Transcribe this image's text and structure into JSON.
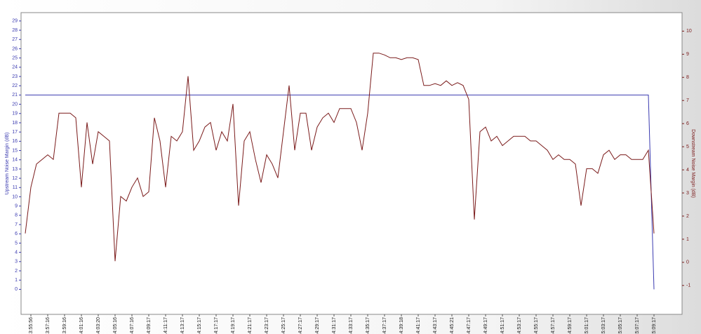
{
  "chart_data": {
    "type": "line",
    "ylabel": "Upstream Noise Margin (dB)",
    "y2label": "Downstream Noise Margin (dB)",
    "categories": [
      null,
      "13:55:56",
      null,
      null,
      "13:57:16",
      null,
      null,
      "13:59:16",
      null,
      null,
      "14:01:16",
      null,
      null,
      "14:03:20",
      null,
      null,
      "14:05:16",
      null,
      null,
      "14:07:16",
      null,
      null,
      "14:09:17",
      null,
      null,
      "14:11:17",
      null,
      null,
      "14:13:17",
      null,
      null,
      "14:15:17",
      null,
      null,
      "14:17:17",
      null,
      null,
      "14:19:17",
      null,
      null,
      "14:21:17",
      null,
      null,
      "14:23:17",
      null,
      null,
      "14:25:17",
      null,
      null,
      "14:27:17",
      null,
      null,
      "14:29:17",
      null,
      null,
      "14:31:17",
      null,
      null,
      "14:33:17",
      null,
      null,
      "14:35:17",
      null,
      null,
      "14:37:17",
      null,
      null,
      "14:39:18",
      null,
      null,
      "14:41:17",
      null,
      null,
      "14:43:17",
      null,
      null,
      "14:45:21",
      null,
      null,
      "14:47:17",
      null,
      null,
      "14:49:17",
      null,
      null,
      "14:51:17",
      null,
      null,
      "14:53:17",
      null,
      null,
      "14:55:17",
      null,
      null,
      "14:57:17",
      null,
      null,
      "14:59:17",
      null,
      null,
      "15:01:17",
      null,
      null,
      "15:03:17",
      null,
      null,
      "15:05:17",
      null,
      null,
      "15:07:17",
      null,
      null,
      "15:09:17"
    ],
    "series": [
      {
        "color": "#3a3ab0",
        "axis": "y",
        "values": [
          21,
          21,
          21,
          21,
          21,
          21,
          21,
          21,
          21,
          21,
          21,
          21,
          21,
          21,
          21,
          21,
          21,
          21,
          21,
          21,
          21,
          21,
          21,
          21,
          21,
          21,
          21,
          21,
          21,
          21,
          21,
          21,
          21,
          21,
          21,
          21,
          21,
          21,
          21,
          21,
          21,
          21,
          21,
          21,
          21,
          21,
          21,
          21,
          21,
          21,
          21,
          21,
          21,
          21,
          21,
          21,
          21,
          21,
          21,
          21,
          21,
          21,
          21,
          21,
          21,
          21,
          21,
          21,
          21,
          21,
          21,
          21,
          21,
          21,
          21,
          21,
          21,
          21,
          21,
          21,
          21,
          21,
          21,
          21,
          21,
          21,
          21,
          21,
          21,
          21,
          21,
          21,
          21,
          21,
          21,
          21,
          21,
          21,
          21,
          21,
          21,
          21,
          21,
          21,
          21,
          21,
          21,
          21,
          21,
          21,
          21,
          21,
          0
        ]
      },
      {
        "color": "#7a1a1a",
        "axis": "y2",
        "values": [
          1.25,
          3.25,
          4.25,
          4.45,
          4.65,
          4.45,
          6.45,
          6.45,
          6.45,
          6.25,
          3.25,
          6.05,
          4.25,
          5.65,
          5.45,
          5.25,
          0.05,
          2.85,
          2.65,
          3.25,
          3.65,
          2.85,
          3.05,
          6.25,
          5.25,
          3.25,
          5.45,
          5.25,
          5.65,
          8.05,
          4.85,
          5.25,
          5.85,
          6.05,
          4.85,
          5.65,
          5.25,
          6.85,
          2.45,
          5.25,
          5.65,
          4.45,
          3.45,
          4.65,
          4.25,
          3.65,
          5.65,
          7.65,
          4.85,
          6.45,
          6.45,
          4.85,
          5.85,
          6.25,
          6.45,
          6.05,
          6.65,
          6.65,
          6.65,
          6.05,
          4.85,
          6.45,
          9.05,
          9.05,
          8.97,
          8.85,
          8.85,
          8.77,
          8.85,
          8.85,
          8.77,
          7.65,
          7.65,
          7.73,
          7.65,
          7.85,
          7.65,
          7.77,
          7.65,
          7.05,
          1.85,
          5.65,
          5.85,
          5.25,
          5.45,
          5.05,
          5.25,
          5.45,
          5.45,
          5.45,
          5.25,
          5.25,
          5.05,
          4.85,
          4.45,
          4.65,
          4.45,
          4.45,
          4.25,
          2.45,
          4.05,
          4.05,
          3.85,
          4.65,
          4.85,
          4.45,
          4.65,
          4.65,
          4.45,
          4.45,
          4.45,
          4.85,
          1.25
        ]
      }
    ],
    "ylim": [
      -2.7,
      29.9
    ],
    "yticks": [
      0,
      1,
      2,
      3,
      4,
      5,
      6,
      7,
      8,
      9,
      10,
      11,
      12,
      13,
      14,
      15,
      16,
      17,
      18,
      19,
      20,
      21,
      22,
      23,
      24,
      25,
      26,
      27,
      28,
      29
    ],
    "y2lim": [
      -2.25,
      10.8
    ],
    "y2ticks": [
      -1,
      0,
      1,
      2,
      3,
      4,
      5,
      6,
      7,
      8,
      9,
      10
    ],
    "grid": false
  }
}
